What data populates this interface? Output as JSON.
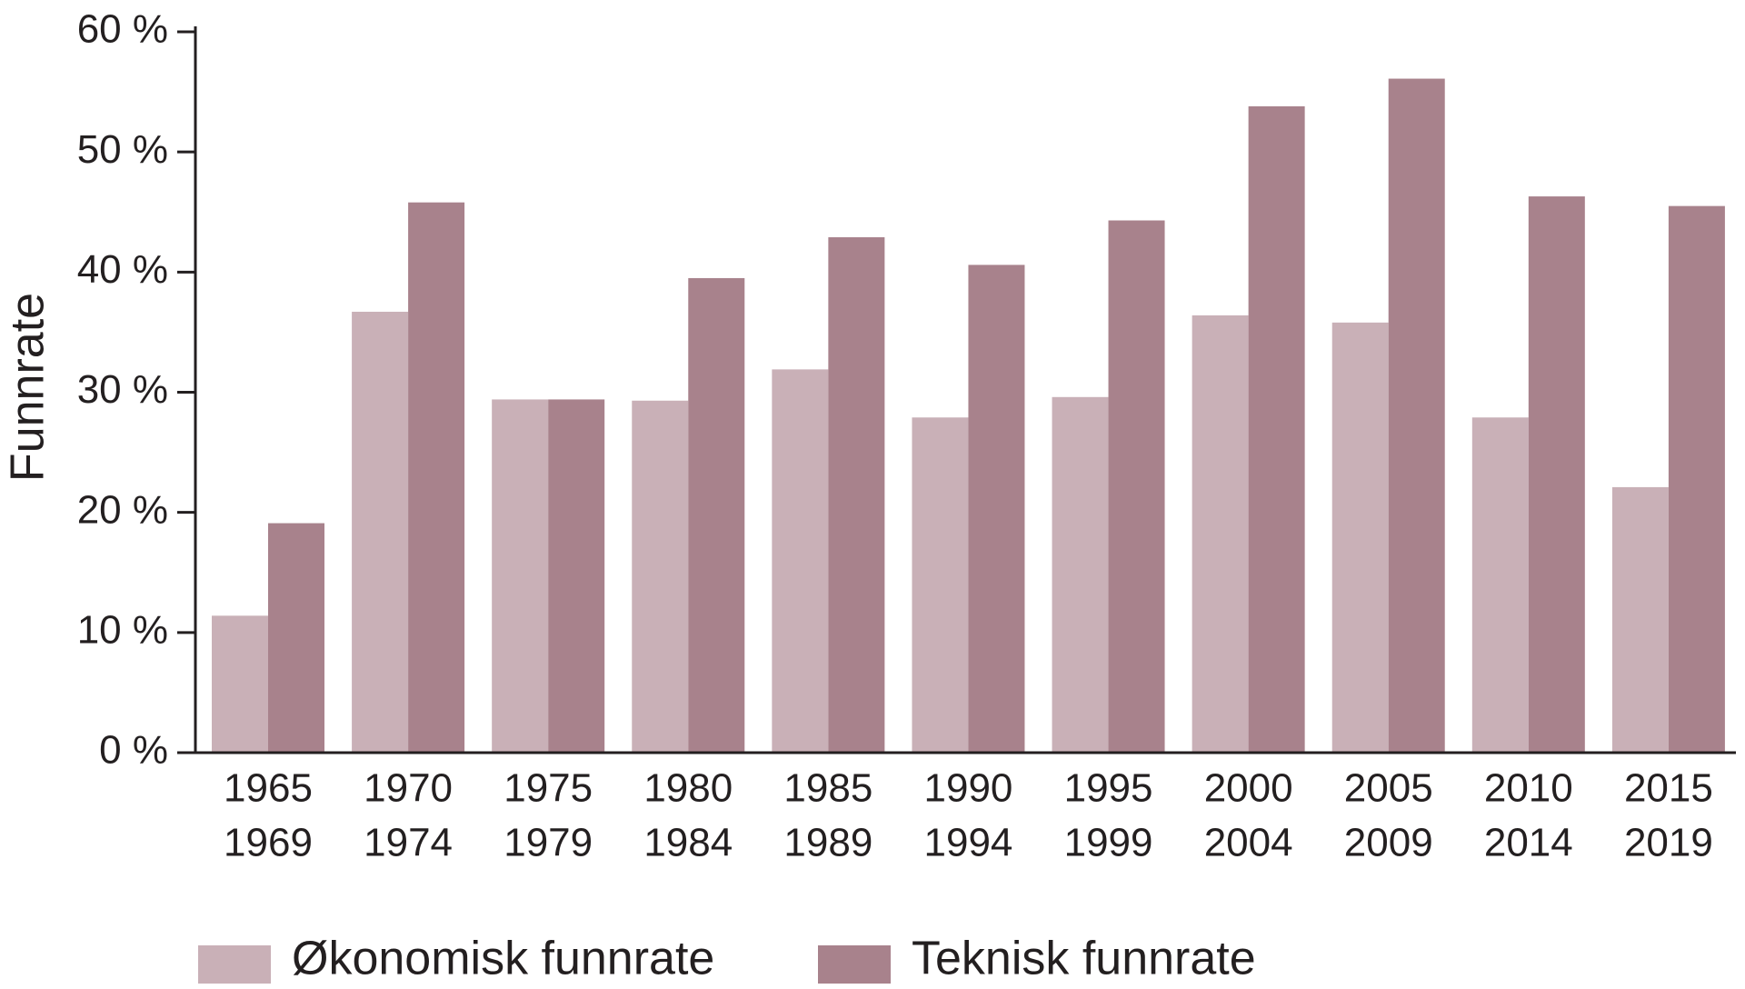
{
  "chart_data": {
    "type": "bar",
    "y_label": "Funnrate",
    "categories": [
      [
        "1965",
        "1969"
      ],
      [
        "1970",
        "1974"
      ],
      [
        "1975",
        "1979"
      ],
      [
        "1980",
        "1984"
      ],
      [
        "1985",
        "1989"
      ],
      [
        "1990",
        "1994"
      ],
      [
        "1995",
        "1999"
      ],
      [
        "2000",
        "2004"
      ],
      [
        "2005",
        "2009"
      ],
      [
        "2010",
        "2014"
      ],
      [
        "2015",
        "2019"
      ]
    ],
    "series": [
      {
        "name": "Økonomisk funnrate",
        "color": "#c9b0b7",
        "values": [
          11.4,
          36.7,
          29.4,
          29.3,
          31.9,
          27.9,
          29.6,
          36.4,
          35.8,
          27.9,
          22.1
        ]
      },
      {
        "name": "Teknisk funnrate",
        "color": "#a8828c",
        "values": [
          19.1,
          45.8,
          29.4,
          39.5,
          42.9,
          40.6,
          44.3,
          53.8,
          56.1,
          46.3,
          45.5
        ]
      }
    ],
    "ylim": [
      0,
      60
    ],
    "yticks": [
      {
        "value": 0,
        "label": "0 %"
      },
      {
        "value": 10,
        "label": "10 %"
      },
      {
        "value": 20,
        "label": "20 %"
      },
      {
        "value": 30,
        "label": "30 %"
      },
      {
        "value": 40,
        "label": "40 %"
      },
      {
        "value": 50,
        "label": "50 %"
      },
      {
        "value": 60,
        "label": "60 %"
      }
    ],
    "grid": false,
    "legend": "bottom"
  }
}
